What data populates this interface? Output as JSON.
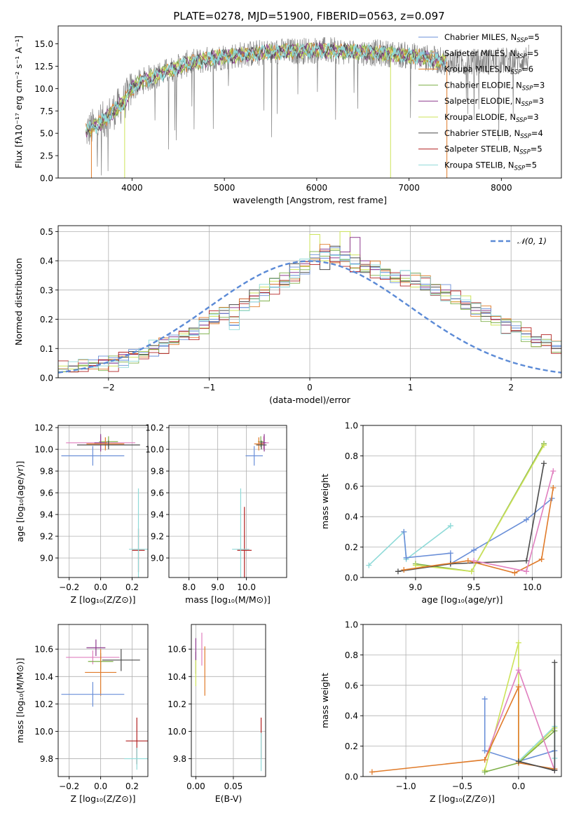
{
  "palette": {
    "chabrier_miles": "#6a8fd8",
    "salpeter_miles": "#8fb7e8",
    "kroupa_miles": "#e07b2a",
    "chabrier_elodie": "#7fb04a",
    "salpeter_elodie": "#8e3a8e",
    "kroupa_elodie": "#cde35a",
    "chabrier_stelib": "#4b4b4b",
    "salpeter_stelib": "#b22222",
    "kroupa_stelib": "#8fdad8",
    "data": "#808080",
    "pink": "#e07fbf",
    "normal": "#5b8ad6"
  },
  "chart_data": [
    {
      "id": "spectrum",
      "type": "line",
      "title": "PLATE=0278, MJD=51900, FIBERID=0563, z=0.097",
      "xlabel": "wavelength [Angstrom, rest frame]",
      "ylabel": "Flux [fλ10⁻¹⁷ erg cm⁻² s⁻¹ A⁻¹]",
      "xlim": [
        3200,
        8650
      ],
      "ylim": [
        0,
        17
      ],
      "xticks": [
        4000,
        5000,
        6000,
        7000,
        8000
      ],
      "yticks": [
        0.0,
        2.5,
        5.0,
        7.5,
        10.0,
        12.5,
        15.0
      ],
      "grid": false,
      "legend_position": "top-right",
      "legend": [
        {
          "name": "Chabrier MILES, N",
          "sub": "SSP",
          "eq": "=5",
          "color": "chabrier_miles"
        },
        {
          "name": "Salpeter MILES, N",
          "sub": "SSP",
          "eq": "=5",
          "color": "salpeter_miles"
        },
        {
          "name": "Kroupa MILES, N",
          "sub": "SSP",
          "eq": "=6",
          "color": "kroupa_miles"
        },
        {
          "name": "Chabrier ELODIE, N",
          "sub": "SSP",
          "eq": "=3",
          "color": "chabrier_elodie"
        },
        {
          "name": "Salpeter ELODIE, N",
          "sub": "SSP",
          "eq": "=3",
          "color": "salpeter_elodie"
        },
        {
          "name": "Kroupa ELODIE, N",
          "sub": "SSP",
          "eq": "=3",
          "color": "kroupa_elodie"
        },
        {
          "name": "Chabrier STELIB, N",
          "sub": "SSP",
          "eq": "=4",
          "color": "chabrier_stelib"
        },
        {
          "name": "Salpeter STELIB, N",
          "sub": "SSP",
          "eq": "=5",
          "color": "salpeter_stelib"
        },
        {
          "name": "Kroupa STELIB, N",
          "sub": "SSP",
          "eq": "=5",
          "color": "kroupa_stelib"
        }
      ],
      "continuum": {
        "x": [
          3500,
          3600,
          3700,
          3800,
          3900,
          4000,
          4100,
          4200,
          4400,
          4600,
          4800,
          5000,
          5200,
          5400,
          5600,
          5800,
          6000,
          6200,
          6400,
          6600,
          6800,
          7000,
          7200,
          7400,
          7600,
          7800,
          8000,
          8200,
          8400
        ],
        "y": [
          5.2,
          5.8,
          6.5,
          7.5,
          8.3,
          10.0,
          10.8,
          11.2,
          12.0,
          12.8,
          13.2,
          13.6,
          13.8,
          14.0,
          14.1,
          14.2,
          14.3,
          14.2,
          14.1,
          14.0,
          13.9,
          13.7,
          13.4,
          13.0,
          12.9,
          13.0,
          13.1,
          13.2,
          13.6
        ]
      },
      "model_x_range": [
        3500,
        7400
      ],
      "data_x_range": [
        3500,
        8300
      ]
    },
    {
      "id": "residuals",
      "type": "histogram",
      "xlabel": "(data-model)/error",
      "ylabel": "Normed distribution",
      "xlim": [
        -2.5,
        2.5
      ],
      "ylim": [
        0,
        0.52
      ],
      "xticks": [
        -2,
        -1,
        0,
        1,
        2
      ],
      "yticks": [
        0.0,
        0.1,
        0.2,
        0.3,
        0.4,
        0.5
      ],
      "grid": true,
      "legend_position": "top-right",
      "legend": [
        {
          "name": "𝒩(0, 1)",
          "color": "normal"
        }
      ],
      "bin_width": 0.1,
      "bins_start": -2.5,
      "series_values": [
        [
          0.03,
          0.03,
          0.04,
          0.05,
          0.05,
          0.05,
          0.06,
          0.08,
          0.08,
          0.1,
          0.11,
          0.12,
          0.14,
          0.16,
          0.18,
          0.2,
          0.22,
          0.18,
          0.24,
          0.27,
          0.29,
          0.31,
          0.33,
          0.35,
          0.38,
          0.41,
          0.43,
          0.42,
          0.4,
          0.39,
          0.38,
          0.37,
          0.36,
          0.35,
          0.34,
          0.33,
          0.32,
          0.3,
          0.29,
          0.27,
          0.26,
          0.24,
          0.22,
          0.2,
          0.18,
          0.17,
          0.15,
          0.13,
          0.12,
          0.11,
          0.09,
          0.08,
          0.07,
          0.06,
          0.05,
          0.05,
          0.04,
          0.04,
          0.03
        ],
        [
          0.04,
          0.03,
          0.04,
          0.05,
          0.06,
          0.04,
          0.07,
          0.07,
          0.09,
          0.11,
          0.12,
          0.13,
          0.15,
          0.17,
          0.17,
          0.21,
          0.24,
          0.23,
          0.26,
          0.29,
          0.31,
          0.33,
          0.33,
          0.37,
          0.38,
          0.49,
          0.4,
          0.44,
          0.5,
          0.42,
          0.37,
          0.38,
          0.35,
          0.33,
          0.34,
          0.31,
          0.3,
          0.32,
          0.28,
          0.26,
          0.28,
          0.22,
          0.21,
          0.18,
          0.18,
          0.16,
          0.14,
          0.12,
          0.12,
          0.1,
          0.09,
          0.07,
          0.06,
          0.06,
          0.05,
          0.05,
          0.04,
          0.03,
          0.03
        ],
        [
          0.03,
          0.04,
          0.05,
          0.04,
          0.06,
          0.05,
          0.08,
          0.08,
          0.1,
          0.1,
          0.13,
          0.14,
          0.16,
          0.15,
          0.18,
          0.19,
          0.22,
          0.24,
          0.27,
          0.28,
          0.3,
          0.32,
          0.35,
          0.36,
          0.39,
          0.41,
          0.44,
          0.41,
          0.43,
          0.48,
          0.4,
          0.37,
          0.37,
          0.34,
          0.35,
          0.33,
          0.31,
          0.29,
          0.3,
          0.27,
          0.25,
          0.23,
          0.23,
          0.2,
          0.18,
          0.16,
          0.15,
          0.13,
          0.11,
          0.1,
          0.09,
          0.08,
          0.07,
          0.06,
          0.05,
          0.05,
          0.04,
          0.04,
          0.03
        ],
        [
          0.03,
          0.04,
          0.03,
          0.05,
          0.05,
          0.06,
          0.07,
          0.09,
          0.08,
          0.11,
          0.12,
          0.12,
          0.14,
          0.17,
          0.2,
          0.19,
          0.23,
          0.25,
          0.26,
          0.3,
          0.3,
          0.34,
          0.32,
          0.39,
          0.36,
          0.4,
          0.37,
          0.45,
          0.42,
          0.41,
          0.36,
          0.38,
          0.37,
          0.34,
          0.33,
          0.33,
          0.3,
          0.31,
          0.29,
          0.27,
          0.25,
          0.24,
          0.21,
          0.21,
          0.19,
          0.16,
          0.15,
          0.14,
          0.12,
          0.1,
          0.1,
          0.08,
          0.07,
          0.06,
          0.05,
          0.04,
          0.04,
          0.04,
          0.03
        ]
      ],
      "series_colors": [
        "normal",
        "kroupa_elodie",
        "salpeter_elodie",
        "chabrier_stelib"
      ],
      "normal_curve": {
        "mean": 0,
        "sigma": 1
      }
    },
    {
      "id": "age_vs_Z",
      "type": "errorbar",
      "xlabel": "Z [log₁₀(Z/Z⊙)]",
      "ylabel": "age  [log₁₀(age/yr)]",
      "xlim": [
        -0.27,
        0.3
      ],
      "ylim": [
        8.82,
        10.22
      ],
      "xticks": [
        -0.2,
        0.0,
        0.2
      ],
      "yticks": [
        9.0,
        9.2,
        9.4,
        9.6,
        9.8,
        10.0,
        10.2
      ],
      "grid": true,
      "points": [
        {
          "x": 0.0,
          "y": 10.06,
          "xerr": 0.22,
          "yerr": 0.06,
          "color": "pink"
        },
        {
          "x": 0.05,
          "y": 10.07,
          "xerr": 0.06,
          "yerr": 0.05,
          "color": "chabrier_elodie"
        },
        {
          "x": 0.0,
          "y": 10.06,
          "xerr": 0.04,
          "yerr": 0.08,
          "color": "salpeter_elodie"
        },
        {
          "x": 0.03,
          "y": 10.05,
          "xerr": 0.12,
          "yerr": 0.06,
          "color": "kroupa_miles"
        },
        {
          "x": 0.05,
          "y": 10.04,
          "xerr": 0.2,
          "yerr": 0.04,
          "color": "chabrier_stelib"
        },
        {
          "x": -0.05,
          "y": 9.94,
          "xerr": 0.2,
          "yerr": 0.09,
          "color": "chabrier_miles"
        },
        {
          "x": 0.24,
          "y": 9.07,
          "xerr": 0.04,
          "yerr": 0.2,
          "color": "salpeter_stelib"
        },
        {
          "x": 0.24,
          "y": 9.08,
          "xerr": 0.06,
          "yerr": 0.56,
          "color": "kroupa_stelib"
        }
      ]
    },
    {
      "id": "age_vs_mass",
      "type": "errorbar",
      "xlabel": "mass [log₁₀(M/M⊙)]",
      "ylabel": "",
      "xlim": [
        7.3,
        11.4
      ],
      "ylim": [
        8.82,
        10.22
      ],
      "xticks": [
        8.0,
        9.0,
        10.0
      ],
      "xtick_labels": [
        "8.0",
        "9.0",
        "10.0"
      ],
      "yticks": [
        9.0,
        9.2,
        9.4,
        9.6,
        9.8,
        10.0,
        10.2
      ],
      "grid": true,
      "points": [
        {
          "x": 10.6,
          "y": 10.06,
          "xerr": 0.18,
          "yerr": 0.06,
          "color": "pink"
        },
        {
          "x": 10.5,
          "y": 10.07,
          "xerr": 0.1,
          "yerr": 0.05,
          "color": "chabrier_elodie"
        },
        {
          "x": 10.62,
          "y": 10.06,
          "xerr": 0.06,
          "yerr": 0.08,
          "color": "salpeter_elodie"
        },
        {
          "x": 10.43,
          "y": 10.05,
          "xerr": 0.16,
          "yerr": 0.06,
          "color": "kroupa_miles"
        },
        {
          "x": 10.52,
          "y": 10.04,
          "xerr": 0.18,
          "yerr": 0.04,
          "color": "chabrier_stelib"
        },
        {
          "x": 10.27,
          "y": 9.94,
          "xerr": 0.3,
          "yerr": 0.09,
          "color": "chabrier_miles"
        },
        {
          "x": 9.93,
          "y": 9.07,
          "xerr": 0.25,
          "yerr": 0.4,
          "color": "salpeter_stelib"
        },
        {
          "x": 9.8,
          "y": 9.08,
          "xerr": 0.3,
          "yerr": 0.56,
          "color": "kroupa_stelib"
        }
      ]
    },
    {
      "id": "massweight_vs_age",
      "type": "line",
      "xlabel": "age  [log₁₀(age/yr)]",
      "ylabel": "mass weight",
      "xlim": [
        8.55,
        10.25
      ],
      "ylim": [
        0,
        1.0
      ],
      "xticks": [
        9.0,
        9.5,
        10.0
      ],
      "yticks": [
        0.0,
        0.2,
        0.4,
        0.6,
        0.8,
        1.0
      ],
      "grid": true,
      "series": [
        {
          "color": "kroupa_stelib",
          "x": [
            8.6,
            8.9,
            8.92,
            9.3,
            9.3
          ],
          "y": [
            0.08,
            0.3,
            0.12,
            0.34,
            0.34
          ]
        },
        {
          "color": "chabrier_miles",
          "x": [
            8.9,
            8.92,
            9.3,
            9.3,
            9.5,
            9.95,
            10.17
          ],
          "y": [
            0.3,
            0.13,
            0.16,
            0.09,
            0.18,
            0.38,
            0.52
          ]
        },
        {
          "color": "chabrier_elodie",
          "x": [
            9.0,
            9.48,
            10.1
          ],
          "y": [
            0.09,
            0.04,
            0.88
          ]
        },
        {
          "color": "kroupa_elodie",
          "x": [
            9.0,
            9.48,
            10.1
          ],
          "y": [
            0.08,
            0.04,
            0.87
          ]
        },
        {
          "color": "chabrier_stelib",
          "x": [
            8.85,
            9.3,
            9.95,
            10.1
          ],
          "y": [
            0.04,
            0.09,
            0.11,
            0.75
          ]
        },
        {
          "color": "kroupa_miles",
          "x": [
            8.9,
            9.45,
            9.85,
            10.08,
            10.18
          ],
          "y": [
            0.05,
            0.11,
            0.03,
            0.12,
            0.59
          ]
        },
        {
          "color": "pink",
          "x": [
            9.5,
            9.95,
            10.18
          ],
          "y": [
            0.11,
            0.04,
            0.7
          ]
        }
      ]
    },
    {
      "id": "mass_vs_Z",
      "type": "errorbar",
      "xlabel": "Z [log₁₀(Z/Z⊙)]",
      "ylabel": "mass [log₁₀(M/M⊙)]",
      "xlim": [
        -0.27,
        0.3
      ],
      "ylim": [
        9.67,
        10.78
      ],
      "xticks": [
        -0.2,
        0.0,
        0.2
      ],
      "yticks": [
        9.8,
        10.0,
        10.2,
        10.4,
        10.6
      ],
      "grid": true,
      "points": [
        {
          "x": -0.03,
          "y": 10.61,
          "xerr": 0.06,
          "yerr": 0.06,
          "color": "salpeter_elodie"
        },
        {
          "x": -0.05,
          "y": 10.54,
          "xerr": 0.17,
          "yerr": 0.05,
          "color": "pink"
        },
        {
          "x": 0.0,
          "y": 10.51,
          "xerr": 0.08,
          "yerr": 0.06,
          "color": "chabrier_elodie"
        },
        {
          "x": 0.13,
          "y": 10.52,
          "xerr": 0.12,
          "yerr": 0.08,
          "color": "chabrier_stelib"
        },
        {
          "x": 0.0,
          "y": 10.43,
          "xerr": 0.1,
          "yerr": 0.17,
          "color": "kroupa_miles"
        },
        {
          "x": -0.05,
          "y": 10.27,
          "xerr": 0.2,
          "yerr": 0.09,
          "color": "chabrier_miles"
        },
        {
          "x": 0.23,
          "y": 9.93,
          "xerr": 0.07,
          "yerr": 0.17,
          "color": "salpeter_stelib"
        },
        {
          "x": 0.23,
          "y": 9.8,
          "xerr": 0.08,
          "yerr": 0.08,
          "color": "kroupa_stelib"
        }
      ]
    },
    {
      "id": "mass_vs_ebv",
      "type": "errorbar",
      "xlabel": "E(B-V)",
      "ylabel": "",
      "xlim": [
        -0.006,
        0.093
      ],
      "ylim": [
        9.67,
        10.78
      ],
      "xticks": [
        0.0,
        0.05
      ],
      "yticks": [
        9.8,
        10.0,
        10.2,
        10.4,
        10.6
      ],
      "grid": true,
      "points": [
        {
          "x": 0.0,
          "y": 10.5,
          "xerr": 0,
          "yerr": 0.08,
          "color": "chabrier_stelib"
        },
        {
          "x": 0.0,
          "y": 10.43,
          "xerr": 0,
          "yerr": 0.1,
          "color": "kroupa_elodie"
        },
        {
          "x": 0.0,
          "y": 10.6,
          "xerr": 0,
          "yerr": 0.08,
          "color": "salpeter_elodie"
        },
        {
          "x": 0.008,
          "y": 10.6,
          "xerr": 0,
          "yerr": 0.12,
          "color": "pink"
        },
        {
          "x": 0.012,
          "y": 10.44,
          "xerr": 0,
          "yerr": 0.18,
          "color": "kroupa_miles"
        },
        {
          "x": 0.087,
          "y": 9.95,
          "xerr": 0,
          "yerr": 0.15,
          "color": "salpeter_stelib"
        },
        {
          "x": 0.087,
          "y": 9.85,
          "xerr": 0,
          "yerr": 0.14,
          "color": "kroupa_stelib"
        }
      ]
    },
    {
      "id": "massweight_vs_Z",
      "type": "line",
      "xlabel": "Z [log₁₀(Z/Z⊙)]",
      "ylabel": "mass weight",
      "xlim": [
        -1.38,
        0.38
      ],
      "ylim": [
        0,
        1.0
      ],
      "xticks": [
        -1.0,
        -0.5,
        0.0
      ],
      "yticks": [
        0.0,
        0.2,
        0.4,
        0.6,
        0.8,
        1.0
      ],
      "grid": true,
      "series": [
        {
          "color": "chabrier_miles",
          "x": [
            -0.3,
            -0.3,
            0.0,
            0.32,
            0.32,
            0.32
          ],
          "y": [
            0.51,
            0.17,
            0.1,
            0.17,
            0.05,
            0.05
          ]
        },
        {
          "color": "kroupa_stelib",
          "x": [
            0.0,
            0.32,
            0.32
          ],
          "y": [
            0.1,
            0.33,
            0.12
          ]
        },
        {
          "color": "kroupa_elodie",
          "x": [
            -0.3,
            0.0,
            0.0,
            0.32
          ],
          "y": [
            0.04,
            0.88,
            0.09,
            0.32
          ]
        },
        {
          "color": "chabrier_elodie",
          "x": [
            -0.3,
            0.0,
            0.32
          ],
          "y": [
            0.03,
            0.09,
            0.3
          ]
        },
        {
          "color": "pink",
          "x": [
            -0.3,
            0.0,
            0.32
          ],
          "y": [
            0.11,
            0.7,
            0.04
          ]
        },
        {
          "color": "kroupa_miles",
          "x": [
            -1.3,
            -0.3,
            0.0,
            0.0,
            0.32
          ],
          "y": [
            0.03,
            0.11,
            0.59,
            0.09,
            0.05
          ]
        },
        {
          "color": "chabrier_stelib",
          "x": [
            0.0,
            0.32,
            0.32
          ],
          "y": [
            0.1,
            0.04,
            0.75
          ]
        }
      ]
    }
  ]
}
